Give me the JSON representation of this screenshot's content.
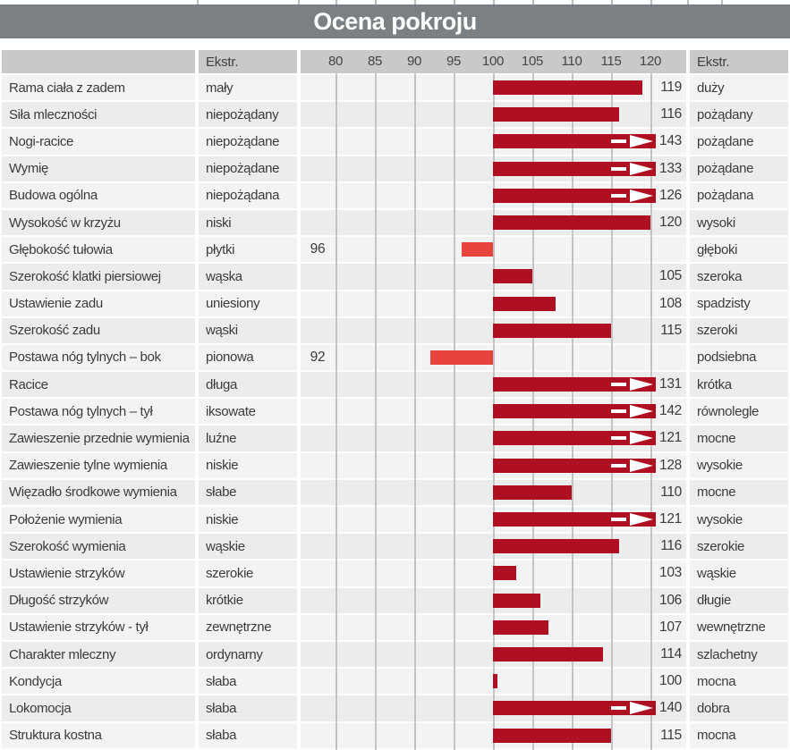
{
  "title": "Ocena pokroju",
  "header": {
    "ekstr_left": "Ekstr.",
    "ekstr_right": "Ekstr."
  },
  "colors": {
    "title_bg": "#7a8084",
    "header_bg": "#c8c9ca",
    "row_bg_odd": "#f3f3f3",
    "row_bg_even": "#ececec",
    "gridline": "#c4c4c4",
    "bar_above_100": "#ae1022",
    "bar_below_100": "#e8433c",
    "overflow_arrow": "#ffffff",
    "text": "#3b3b3b"
  },
  "chart_data": {
    "type": "bar",
    "title": "Ocena pokroju",
    "orientation": "horizontal",
    "x_axis": {
      "ticks": [
        80,
        85,
        90,
        95,
        100,
        105,
        110,
        115,
        120
      ],
      "baseline": 100,
      "range": [
        80,
        120
      ],
      "overflow_threshold": 120,
      "grid": true
    },
    "legend": "none",
    "rows": [
      {
        "name": "Rama ciała z zadem",
        "left_extreme": "mały",
        "value": 119,
        "right_extreme": "duży"
      },
      {
        "name": "Siła mleczności",
        "left_extreme": "niepożądany",
        "value": 116,
        "right_extreme": "pożądany"
      },
      {
        "name": "Nogi-racice",
        "left_extreme": "niepożądane",
        "value": 143,
        "right_extreme": "pożądane"
      },
      {
        "name": "Wymię",
        "left_extreme": "niepożądane",
        "value": 133,
        "right_extreme": "pożądane"
      },
      {
        "name": "Budowa ogólna",
        "left_extreme": "niepożądana",
        "value": 126,
        "right_extreme": "pożądana"
      },
      {
        "name": "Wysokość w krzyżu",
        "left_extreme": "niski",
        "value": 120,
        "right_extreme": "wysoki"
      },
      {
        "name": "Głębokość tułowia",
        "left_extreme": "płytki",
        "value": 96,
        "right_extreme": "głęboki"
      },
      {
        "name": "Szerokość klatki piersiowej",
        "left_extreme": "wąska",
        "value": 105,
        "right_extreme": "szeroka"
      },
      {
        "name": "Ustawienie zadu",
        "left_extreme": "uniesiony",
        "value": 108,
        "right_extreme": "spadzisty"
      },
      {
        "name": "Szerokość zadu",
        "left_extreme": "wąski",
        "value": 115,
        "right_extreme": "szeroki"
      },
      {
        "name": "Postawa nóg tylnych –  bok",
        "left_extreme": "pionowa",
        "value": 92,
        "right_extreme": "podsiebna"
      },
      {
        "name": "Racice",
        "left_extreme": "długa",
        "value": 131,
        "right_extreme": "krótka"
      },
      {
        "name": "Postawa nóg tylnych –  tył",
        "left_extreme": "iksowate",
        "value": 142,
        "right_extreme": "równolegle"
      },
      {
        "name": "Zawieszenie przednie wymienia",
        "left_extreme": "luźne",
        "value": 121,
        "right_extreme": "mocne"
      },
      {
        "name": "Zawieszenie tylne wymienia",
        "left_extreme": "niskie",
        "value": 128,
        "right_extreme": "wysokie"
      },
      {
        "name": "Więzadło środkowe wymienia",
        "left_extreme": "słabe",
        "value": 110,
        "right_extreme": "mocne"
      },
      {
        "name": "Położenie wymienia",
        "left_extreme": "niskie",
        "value": 121,
        "right_extreme": "wysokie"
      },
      {
        "name": "Szerokość wymienia",
        "left_extreme": "wąskie",
        "value": 116,
        "right_extreme": "szerokie"
      },
      {
        "name": "Ustawienie strzyków",
        "left_extreme": "szerokie",
        "value": 103,
        "right_extreme": "wąskie"
      },
      {
        "name": "Długość strzyków",
        "left_extreme": "krótkie",
        "value": 106,
        "right_extreme": "długie"
      },
      {
        "name": "Ustawienie strzyków - tył",
        "left_extreme": "zewnętrzne",
        "value": 107,
        "right_extreme": "wewnętrzne"
      },
      {
        "name": "Charakter mleczny",
        "left_extreme": "ordynarny",
        "value": 114,
        "right_extreme": "szlachetny"
      },
      {
        "name": "Kondycja",
        "left_extreme": "słaba",
        "value": 100,
        "right_extreme": "mocna"
      },
      {
        "name": "Lokomocja",
        "left_extreme": "słaba",
        "value": 140,
        "right_extreme": "dobra"
      },
      {
        "name": "Struktura kostna",
        "left_extreme": "słaba",
        "value": 115,
        "right_extreme": "mocna"
      }
    ]
  }
}
